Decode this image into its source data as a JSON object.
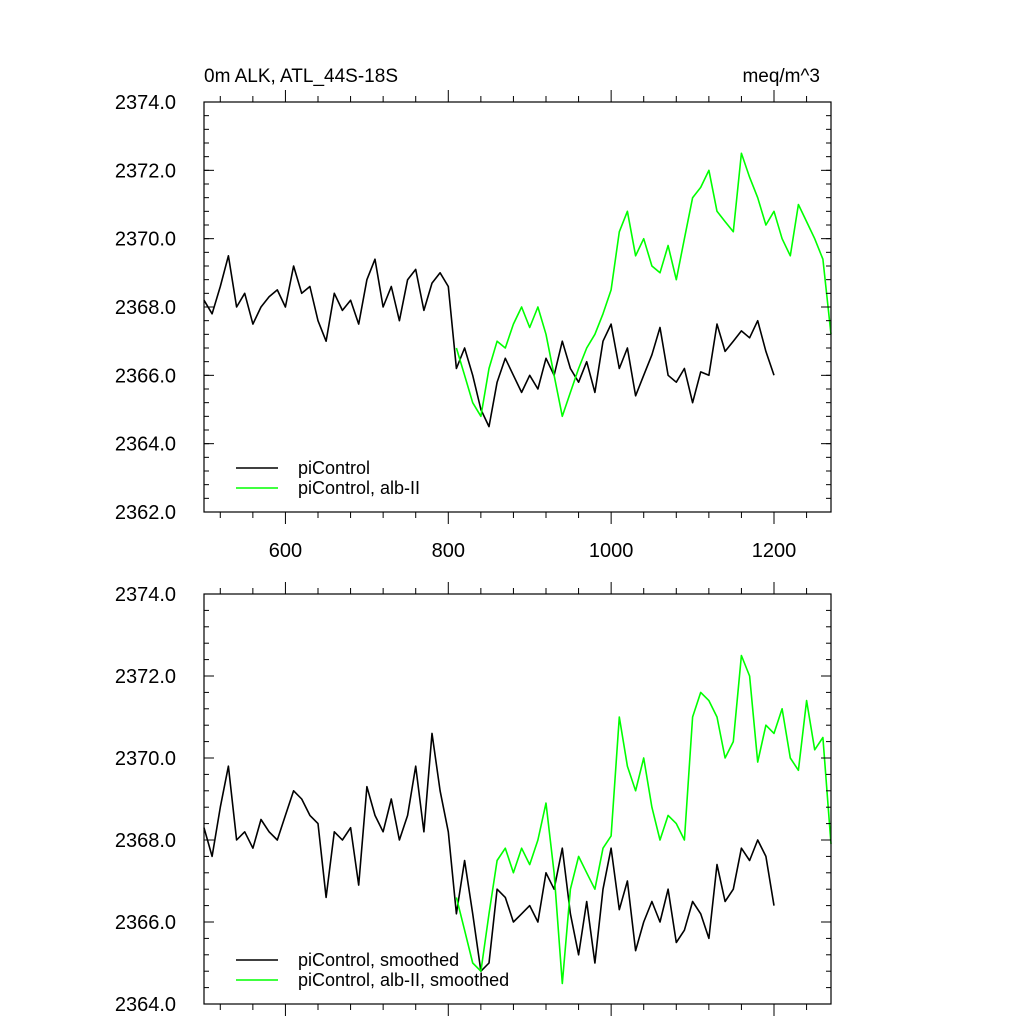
{
  "chart_data": [
    {
      "type": "line",
      "title_left": "0m ALK, ATL_44S-18S",
      "title_right": "meq/m^3",
      "xlim": [
        500,
        1270
      ],
      "ylim": [
        2362,
        2374
      ],
      "xticks": [
        600,
        800,
        1000,
        1200
      ],
      "xtick_labels": [
        "600",
        "800",
        "1000",
        "1200"
      ],
      "yticks": [
        2362,
        2364,
        2366,
        2368,
        2370,
        2372,
        2374
      ],
      "ytick_labels": [
        "2362.0",
        "2364.0",
        "2366.0",
        "2368.0",
        "2370.0",
        "2372.0",
        "2374.0"
      ],
      "legend_position": "lower-left",
      "series": [
        {
          "name": "piControl",
          "color": "#000000",
          "x": [
            500,
            510,
            520,
            530,
            540,
            550,
            560,
            570,
            580,
            590,
            600,
            610,
            620,
            630,
            640,
            650,
            660,
            670,
            680,
            690,
            700,
            710,
            720,
            730,
            740,
            750,
            760,
            770,
            780,
            790,
            800,
            810,
            820,
            830,
            840,
            850,
            860,
            870,
            880,
            890,
            900,
            910,
            920,
            930,
            940,
            950,
            960,
            970,
            980,
            990,
            1000,
            1010,
            1020,
            1030,
            1040,
            1050,
            1060,
            1070,
            1080,
            1090,
            1100,
            1110,
            1120,
            1130,
            1140,
            1150,
            1160,
            1170,
            1180,
            1190,
            1200
          ],
          "y": [
            2368.2,
            2367.8,
            2368.6,
            2369.5,
            2368.0,
            2368.4,
            2367.5,
            2368.0,
            2368.3,
            2368.5,
            2368.0,
            2369.2,
            2368.4,
            2368.6,
            2367.6,
            2367.0,
            2368.4,
            2367.9,
            2368.2,
            2367.5,
            2368.8,
            2369.4,
            2368.0,
            2368.6,
            2367.6,
            2368.8,
            2369.1,
            2367.9,
            2368.7,
            2369.0,
            2368.6,
            2366.2,
            2366.8,
            2366.0,
            2365.0,
            2364.5,
            2365.8,
            2366.5,
            2366.0,
            2365.5,
            2366.0,
            2365.6,
            2366.5,
            2366.0,
            2367.0,
            2366.2,
            2365.8,
            2366.4,
            2365.5,
            2367.0,
            2367.5,
            2366.2,
            2366.8,
            2365.4,
            2366.0,
            2366.6,
            2367.4,
            2366.0,
            2365.8,
            2366.2,
            2365.2,
            2366.1,
            2366.0,
            2367.5,
            2366.7,
            2367.0,
            2367.3,
            2367.1,
            2367.6,
            2366.7,
            2366.0
          ]
        },
        {
          "name": "piControl, alb-II",
          "color": "#00ff00",
          "x": [
            810,
            820,
            830,
            840,
            850,
            860,
            870,
            880,
            890,
            900,
            910,
            920,
            930,
            940,
            950,
            960,
            970,
            980,
            990,
            1000,
            1010,
            1020,
            1030,
            1040,
            1050,
            1060,
            1070,
            1080,
            1090,
            1100,
            1110,
            1120,
            1130,
            1140,
            1150,
            1160,
            1170,
            1180,
            1190,
            1200,
            1210,
            1220,
            1230,
            1240,
            1250,
            1260,
            1270
          ],
          "y": [
            2366.8,
            2366.0,
            2365.2,
            2364.8,
            2366.2,
            2367.0,
            2366.8,
            2367.5,
            2368.0,
            2367.4,
            2368.0,
            2367.2,
            2366.0,
            2364.8,
            2365.5,
            2366.2,
            2366.8,
            2367.2,
            2367.8,
            2368.5,
            2370.2,
            2370.8,
            2369.5,
            2370.0,
            2369.2,
            2369.0,
            2369.8,
            2368.8,
            2370.0,
            2371.2,
            2371.5,
            2372.0,
            2370.8,
            2370.5,
            2370.2,
            2372.5,
            2371.8,
            2371.2,
            2370.4,
            2370.8,
            2370.0,
            2369.5,
            2371.0,
            2370.5,
            2370.0,
            2369.4,
            2367.2
          ]
        }
      ]
    },
    {
      "type": "line",
      "xlim": [
        500,
        1270
      ],
      "ylim": [
        2364,
        2374
      ],
      "xticks": [
        600,
        800,
        1000,
        1200
      ],
      "yticks": [
        2364,
        2366,
        2368,
        2370,
        2372,
        2374
      ],
      "ytick_labels": [
        "2364.0",
        "2366.0",
        "2368.0",
        "2370.0",
        "2372.0",
        "2374.0"
      ],
      "legend_position": "lower-left",
      "series": [
        {
          "name": "piControl, smoothed",
          "color": "#000000",
          "x": [
            500,
            510,
            520,
            530,
            540,
            550,
            560,
            570,
            580,
            590,
            600,
            610,
            620,
            630,
            640,
            650,
            660,
            670,
            680,
            690,
            700,
            710,
            720,
            730,
            740,
            750,
            760,
            770,
            780,
            790,
            800,
            810,
            820,
            830,
            840,
            850,
            860,
            870,
            880,
            890,
            900,
            910,
            920,
            930,
            940,
            950,
            960,
            970,
            980,
            990,
            1000,
            1010,
            1020,
            1030,
            1040,
            1050,
            1060,
            1070,
            1080,
            1090,
            1100,
            1110,
            1120,
            1130,
            1140,
            1150,
            1160,
            1170,
            1180,
            1190,
            1200
          ],
          "y": [
            2368.3,
            2367.6,
            2368.8,
            2369.8,
            2368.0,
            2368.2,
            2367.8,
            2368.5,
            2368.2,
            2368.0,
            2368.6,
            2369.2,
            2369.0,
            2368.6,
            2368.4,
            2366.6,
            2368.2,
            2368.0,
            2368.3,
            2366.9,
            2369.3,
            2368.6,
            2368.2,
            2369.0,
            2368.0,
            2368.6,
            2369.8,
            2368.2,
            2370.6,
            2369.2,
            2368.2,
            2366.2,
            2367.5,
            2366.2,
            2364.8,
            2365.0,
            2366.8,
            2366.6,
            2366.0,
            2366.2,
            2366.4,
            2366.0,
            2367.2,
            2366.8,
            2367.8,
            2366.2,
            2365.2,
            2366.5,
            2365.0,
            2366.8,
            2367.8,
            2366.3,
            2367.0,
            2365.3,
            2366.0,
            2366.5,
            2366.0,
            2366.8,
            2365.5,
            2365.8,
            2366.5,
            2366.2,
            2365.6,
            2367.4,
            2366.5,
            2366.8,
            2367.8,
            2367.5,
            2368.0,
            2367.6,
            2366.4
          ]
        },
        {
          "name": "piControl, alb-II, smoothed",
          "color": "#00ff00",
          "x": [
            810,
            820,
            830,
            840,
            850,
            860,
            870,
            880,
            890,
            900,
            910,
            920,
            930,
            940,
            950,
            960,
            970,
            980,
            990,
            1000,
            1010,
            1020,
            1030,
            1040,
            1050,
            1060,
            1070,
            1080,
            1090,
            1100,
            1110,
            1120,
            1130,
            1140,
            1150,
            1160,
            1170,
            1180,
            1190,
            1200,
            1210,
            1220,
            1230,
            1240,
            1250,
            1260,
            1270
          ],
          "y": [
            2366.6,
            2365.8,
            2365.0,
            2364.8,
            2366.2,
            2367.5,
            2367.8,
            2367.2,
            2367.8,
            2367.4,
            2368.0,
            2368.9,
            2367.2,
            2364.5,
            2366.8,
            2367.6,
            2367.2,
            2366.8,
            2367.8,
            2368.1,
            2371.0,
            2369.8,
            2369.2,
            2370.0,
            2368.8,
            2368.0,
            2368.6,
            2368.4,
            2368.0,
            2371.0,
            2371.6,
            2371.4,
            2371.0,
            2370.0,
            2370.4,
            2372.5,
            2372.0,
            2369.9,
            2370.8,
            2370.6,
            2371.2,
            2370.0,
            2369.7,
            2371.4,
            2370.2,
            2370.5,
            2367.9
          ]
        }
      ]
    }
  ]
}
